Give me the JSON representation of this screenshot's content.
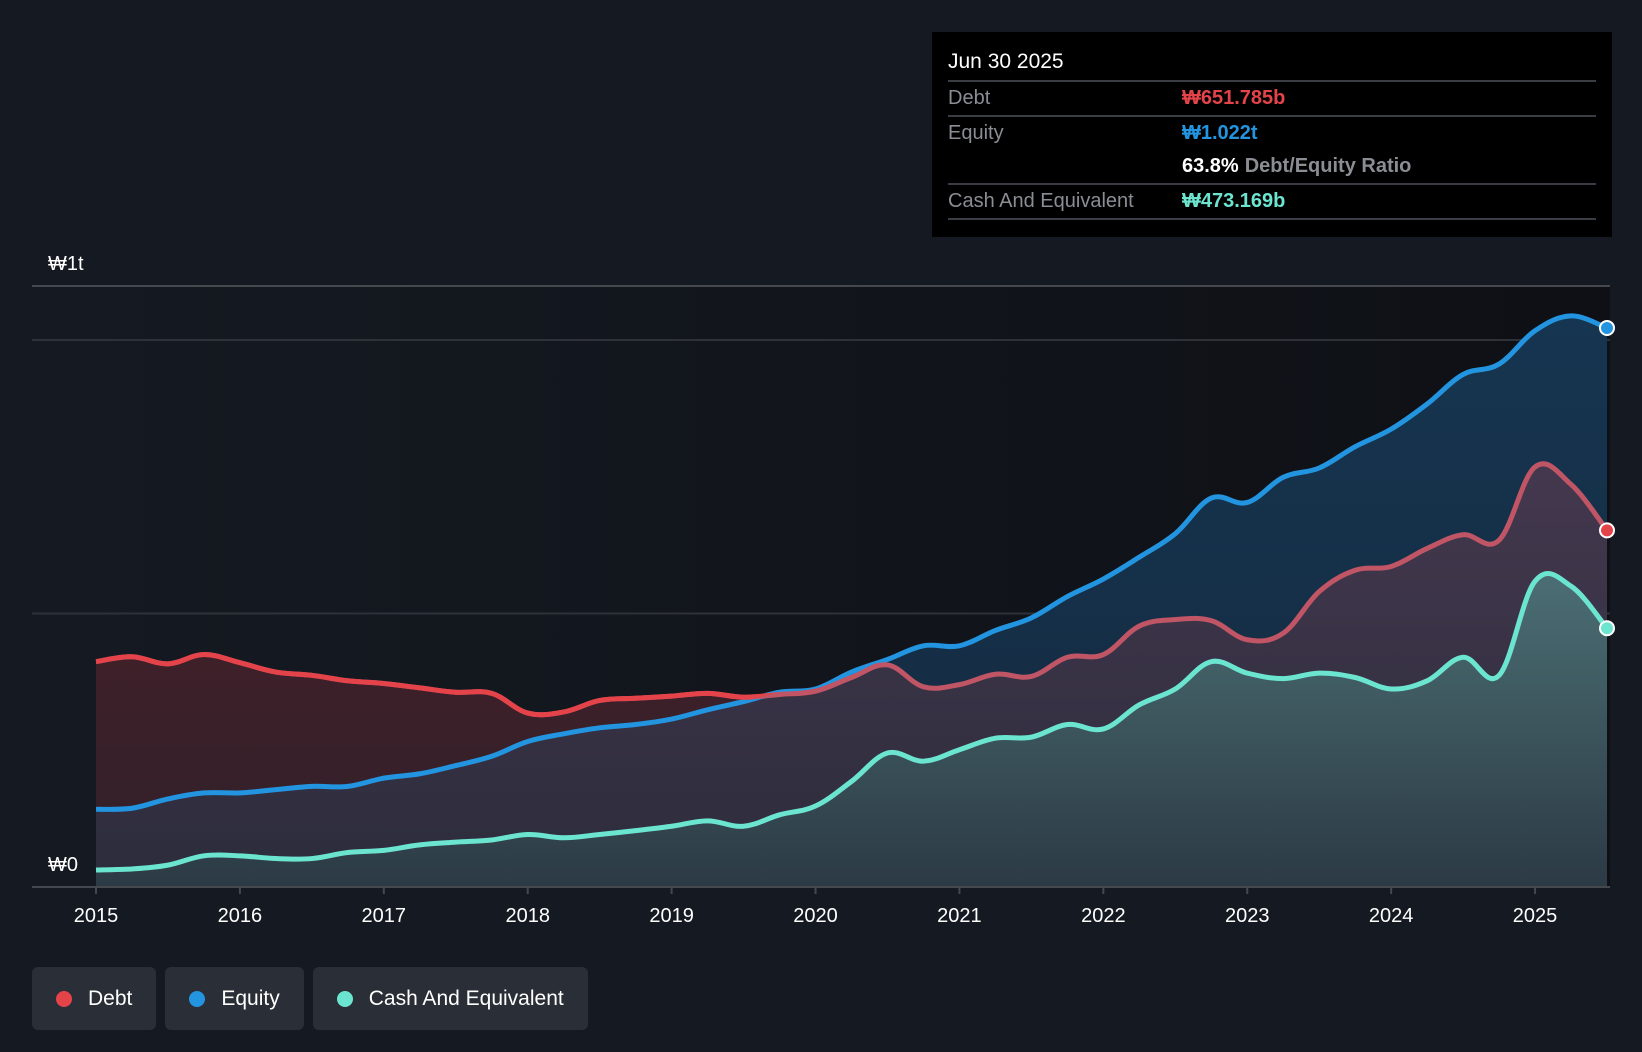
{
  "colors": {
    "debt": "#e5434a",
    "debt_muted": "#c05566",
    "equity": "#2394df",
    "cash": "#6ce5d0",
    "background": "#151a22"
  },
  "tooltip": {
    "date": "Jun 30 2025",
    "rows": [
      {
        "label": "Debt",
        "value": "₩651.785b",
        "series": "debt"
      },
      {
        "label": "Equity",
        "value": "₩1.022t",
        "series": "equity"
      },
      {
        "label": "",
        "ratio_value": "63.8%",
        "ratio_label": "Debt/Equity Ratio"
      },
      {
        "label": "Cash And Equivalent",
        "value": "₩473.169b",
        "series": "cash"
      }
    ]
  },
  "legend": [
    {
      "label": "Debt",
      "series": "debt"
    },
    {
      "label": "Equity",
      "series": "equity"
    },
    {
      "label": "Cash And Equivalent",
      "series": "cash"
    }
  ],
  "chart_data": {
    "type": "area",
    "title": "",
    "xlabel": "",
    "ylabel": "",
    "y_unit": "₩ trillion",
    "y_tick_labels": [
      {
        "value": 0,
        "label": "₩0"
      },
      {
        "value": 1,
        "label": "₩1t"
      }
    ],
    "ylim": [
      0,
      1.1
    ],
    "xlim": [
      2015,
      2025.5
    ],
    "x_ticks": [
      2015,
      2016,
      2017,
      2018,
      2019,
      2020,
      2021,
      2022,
      2023,
      2024,
      2025
    ],
    "x_tick_labels": [
      "2015",
      "2016",
      "2017",
      "2018",
      "2019",
      "2020",
      "2021",
      "2022",
      "2023",
      "2024",
      "2025"
    ],
    "gridlines_y": [
      0.5,
      1
    ],
    "legend_position": "bottom-left",
    "x": [
      2015.0,
      2015.25,
      2015.5,
      2015.75,
      2016.0,
      2016.25,
      2016.5,
      2016.75,
      2017.0,
      2017.25,
      2017.5,
      2017.75,
      2018.0,
      2018.25,
      2018.5,
      2018.75,
      2019.0,
      2019.25,
      2019.5,
      2019.75,
      2020.0,
      2020.25,
      2020.5,
      2020.75,
      2021.0,
      2021.25,
      2021.5,
      2021.75,
      2022.0,
      2022.25,
      2022.5,
      2022.75,
      2023.0,
      2023.25,
      2023.5,
      2023.75,
      2024.0,
      2024.25,
      2024.5,
      2024.75,
      2025.0,
      2025.25,
      2025.5
    ],
    "series": [
      {
        "name": "Debt",
        "key": "debt",
        "values": [
          0.412,
          0.421,
          0.408,
          0.425,
          0.41,
          0.393,
          0.387,
          0.377,
          0.372,
          0.364,
          0.356,
          0.354,
          0.318,
          0.32,
          0.341,
          0.345,
          0.349,
          0.354,
          0.347,
          0.352,
          0.358,
          0.383,
          0.406,
          0.366,
          0.37,
          0.389,
          0.385,
          0.42,
          0.425,
          0.477,
          0.489,
          0.487,
          0.452,
          0.464,
          0.54,
          0.579,
          0.586,
          0.619,
          0.644,
          0.634,
          0.768,
          0.736,
          0.652
        ]
      },
      {
        "name": "Equity",
        "key": "equity",
        "values": [
          0.142,
          0.144,
          0.161,
          0.172,
          0.172,
          0.178,
          0.184,
          0.184,
          0.199,
          0.207,
          0.222,
          0.239,
          0.266,
          0.28,
          0.291,
          0.297,
          0.307,
          0.324,
          0.339,
          0.356,
          0.362,
          0.393,
          0.416,
          0.441,
          0.441,
          0.469,
          0.492,
          0.531,
          0.563,
          0.603,
          0.646,
          0.711,
          0.703,
          0.749,
          0.766,
          0.805,
          0.837,
          0.883,
          0.937,
          0.956,
          1.017,
          1.044,
          1.022
        ]
      },
      {
        "name": "Cash And Equivalent",
        "key": "cash",
        "values": [
          0.031,
          0.033,
          0.04,
          0.057,
          0.057,
          0.052,
          0.052,
          0.063,
          0.067,
          0.077,
          0.082,
          0.086,
          0.096,
          0.09,
          0.096,
          0.103,
          0.111,
          0.121,
          0.111,
          0.132,
          0.148,
          0.193,
          0.245,
          0.23,
          0.251,
          0.272,
          0.274,
          0.297,
          0.289,
          0.333,
          0.362,
          0.412,
          0.391,
          0.381,
          0.391,
          0.383,
          0.362,
          0.377,
          0.42,
          0.387,
          0.559,
          0.55,
          0.473
        ]
      }
    ]
  }
}
